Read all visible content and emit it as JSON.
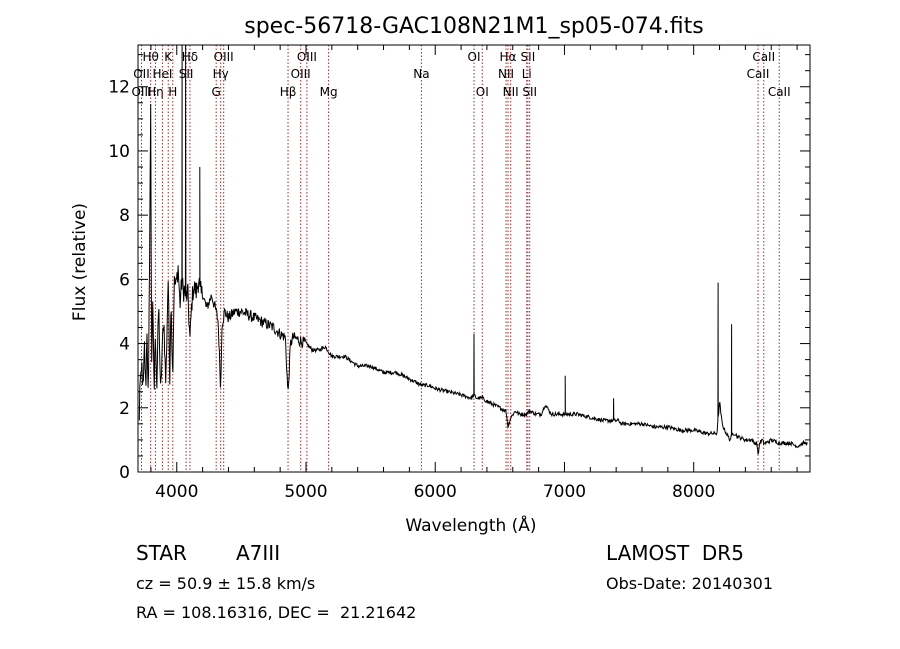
{
  "chart_data": {
    "type": "line",
    "title": "spec-56718-GAC108N21M1_sp05-074.fits",
    "xlabel": "Wavelength (Å)",
    "ylabel": "Flux (relative)",
    "xlim": [
      3700,
      8900
    ],
    "ylim": [
      0,
      13.3
    ],
    "xticks": [
      4000,
      5000,
      6000,
      7000,
      8000
    ],
    "xtick_labels": [
      "4000",
      "5000",
      "6000",
      "7000",
      "8000"
    ],
    "yticks": [
      0,
      2,
      4,
      6,
      8,
      10,
      12
    ],
    "ytick_labels": [
      "0",
      "2",
      "4",
      "6",
      "8",
      "10",
      "12"
    ],
    "grid": false,
    "line_markers": [
      {
        "label": "Hθ",
        "x": 3798,
        "row": 0
      },
      {
        "label": "OII",
        "x": 3727,
        "row": 1
      },
      {
        "label": "OIII",
        "x": 3727,
        "row": 2
      },
      {
        "label": "Hη",
        "x": 3835,
        "row": 2
      },
      {
        "label": "K",
        "x": 3934,
        "row": 0
      },
      {
        "label": "HeI",
        "x": 3889,
        "row": 1
      },
      {
        "label": "H",
        "x": 3969,
        "row": 2
      },
      {
        "label": "SII",
        "x": 4072,
        "row": 1
      },
      {
        "label": "Hδ",
        "x": 4102,
        "row": 0
      },
      {
        "label": "OIII",
        "x": 4363,
        "row": 0
      },
      {
        "label": "Hγ",
        "x": 4340,
        "row": 1
      },
      {
        "label": "G",
        "x": 4305,
        "row": 2
      },
      {
        "label": "Hβ",
        "x": 4861,
        "row": 2
      },
      {
        "label": "OIII",
        "x": 5007,
        "row": 0
      },
      {
        "label": "OIII",
        "x": 4959,
        "row": 1
      },
      {
        "label": "Mg",
        "x": 5175,
        "row": 2
      },
      {
        "label": "Na",
        "x": 5893,
        "row": 1
      },
      {
        "label": "OI",
        "x": 6300,
        "row": 0
      },
      {
        "label": "OI",
        "x": 6364,
        "row": 2
      },
      {
        "label": "Hα",
        "x": 6563,
        "row": 0
      },
      {
        "label": "NII",
        "x": 6548,
        "row": 1
      },
      {
        "label": "NII",
        "x": 6584,
        "row": 2
      },
      {
        "label": "SII",
        "x": 6717,
        "row": 0
      },
      {
        "label": "Li",
        "x": 6708,
        "row": 1
      },
      {
        "label": "SII",
        "x": 6731,
        "row": 2
      },
      {
        "label": "CaII",
        "x": 8542,
        "row": 0
      },
      {
        "label": "CaII",
        "x": 8498,
        "row": 1
      },
      {
        "label": "CaII",
        "x": 8662,
        "row": 2
      }
    ],
    "series": [
      {
        "x": [
          3710,
          3715,
          3720,
          3730,
          3740,
          3750,
          3760,
          3770,
          3780,
          3790,
          3798,
          3805,
          3815,
          3825,
          3835,
          3845,
          3860,
          3875,
          3889,
          3900,
          3915,
          3930,
          3934,
          3945,
          3955,
          3969,
          3980,
          3995,
          4010,
          4025,
          4040,
          4050,
          4060,
          4072,
          4085,
          4102,
          4115,
          4130,
          4150,
          4170,
          4190,
          4200,
          4210,
          4230,
          4250,
          4270,
          4290,
          4305,
          4320,
          4340,
          4350,
          4370,
          4400,
          4450,
          4500,
          4550,
          4600,
          4650,
          4700,
          4750,
          4800,
          4840,
          4861,
          4880,
          4900,
          4950,
          5000,
          5050,
          5100,
          5150,
          5200,
          5300,
          5400,
          5500,
          5600,
          5700,
          5800,
          5893,
          5950,
          6000,
          6100,
          6200,
          6280,
          6300,
          6320,
          6364,
          6400,
          6450,
          6500,
          6548,
          6563,
          6584,
          6620,
          6650,
          6680,
          6708,
          6731,
          6780,
          6820,
          6850,
          6900,
          6950,
          7000,
          7050,
          7060,
          7100,
          7200,
          7300,
          7400,
          7420,
          7440,
          7500,
          7600,
          7700,
          7800,
          7900,
          8000,
          8100,
          8180,
          8200,
          8220,
          8240,
          8280,
          8300,
          8320,
          8340,
          8400,
          8450,
          8470,
          8490,
          8498,
          8510,
          8530,
          8542,
          8560,
          8600,
          8662,
          8700,
          8750,
          8800,
          8850,
          8880
        ],
        "y": [
          1.5,
          3.1,
          2.6,
          3.3,
          2.4,
          3.9,
          2.5,
          4.5,
          1.9,
          6.9,
          11.3,
          3.4,
          5.2,
          2.4,
          4.6,
          2.5,
          5.3,
          2.3,
          4.0,
          4.8,
          2.7,
          5.5,
          6.0,
          2.8,
          5.4,
          3.0,
          5.9,
          5.8,
          6.4,
          5.2,
          6.0,
          5.6,
          5.7,
          5.4,
          5.6,
          4.1,
          5.2,
          5.8,
          5.6,
          6.0,
          5.5,
          5.6,
          5.4,
          5.1,
          5.3,
          5.5,
          5.2,
          5.0,
          4.7,
          2.6,
          4.6,
          5.0,
          4.8,
          5.0,
          5.0,
          4.9,
          4.8,
          4.7,
          4.6,
          4.5,
          4.3,
          4.2,
          2.4,
          4.0,
          4.2,
          4.1,
          4.0,
          3.8,
          3.8,
          3.9,
          3.6,
          3.6,
          3.3,
          3.3,
          3.1,
          3.1,
          2.9,
          2.7,
          2.7,
          2.6,
          2.5,
          2.4,
          2.3,
          2.4,
          2.3,
          2.3,
          2.2,
          2.1,
          2.0,
          1.9,
          1.4,
          1.7,
          1.9,
          1.8,
          1.8,
          1.8,
          1.9,
          1.8,
          1.8,
          2.1,
          1.8,
          1.8,
          1.8,
          1.8,
          1.8,
          1.8,
          1.7,
          1.6,
          1.6,
          1.6,
          1.5,
          1.5,
          1.5,
          1.4,
          1.4,
          1.3,
          1.3,
          1.2,
          1.2,
          2.2,
          1.5,
          1.3,
          1.0,
          1.2,
          1.2,
          1.1,
          1.0,
          1.0,
          0.9,
          0.9,
          0.5,
          0.9,
          1.0,
          0.9,
          0.9,
          1.0,
          0.9,
          0.9,
          0.9,
          0.8,
          0.9,
          0.9
        ]
      }
    ],
    "spikes": [
      {
        "x": 3798,
        "y": 11.3
      },
      {
        "x": 4041,
        "y": 13.3
      },
      {
        "x": 4068,
        "y": 13.3
      },
      {
        "x": 4178,
        "y": 9.5
      },
      {
        "x": 6300,
        "y": 4.3
      },
      {
        "x": 6364,
        "y": 2.4
      },
      {
        "x": 7006,
        "y": 3.0
      },
      {
        "x": 7380,
        "y": 2.3
      },
      {
        "x": 8189,
        "y": 5.9
      },
      {
        "x": 8293,
        "y": 4.6
      }
    ]
  },
  "info": {
    "object_type": "STAR",
    "subclass": "A7III",
    "survey": "LAMOST  DR5",
    "cz": "cz = 50.9 ± 15.8 km/s",
    "obs_date": "Obs-Date: 20140301",
    "coords": "RA = 108.16316, DEC =  21.21642"
  }
}
